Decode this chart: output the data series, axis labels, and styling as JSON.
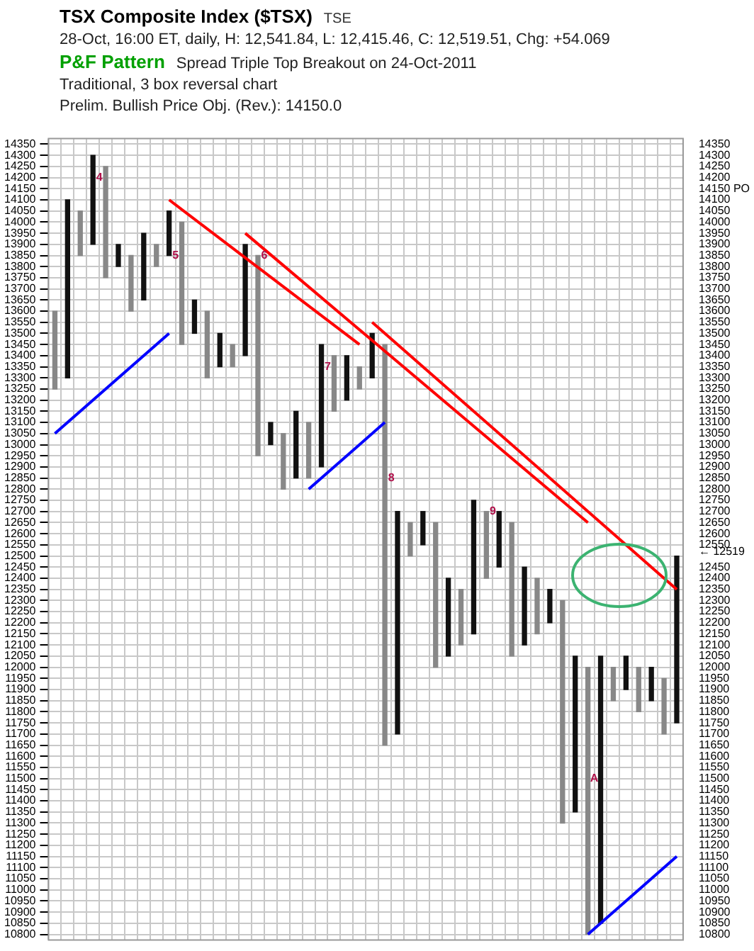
{
  "chart_data": {
    "type": "bar",
    "title": "TSX Composite Index ($TSX)",
    "subtitle": "28-Oct, 16:00 ET, daily, H: 12,541.84, L: 12,415.46, C: 12,519.51, Chg: +54.069",
    "annotations": [
      "TSE",
      "P&F Pattern",
      "Spread Triple Top Breakout on 24-Oct-2011",
      "Traditional, 3 box reversal chart",
      "Prelim. Bullish Price Obj. (Rev.): 14150.0",
      {
        "text": "4",
        "y": 14200
      },
      {
        "text": "5",
        "y": 13850
      },
      {
        "text": "6",
        "y": 13850
      },
      {
        "text": "7",
        "y": 13350
      },
      {
        "text": "8",
        "y": 12850
      },
      {
        "text": "9",
        "y": 12700
      },
      {
        "text": "A",
        "y": 11500
      }
    ],
    "categories": [
      null,
      null,
      null,
      null,
      null,
      null,
      null,
      null,
      null,
      null,
      null,
      null,
      null,
      null,
      null,
      null,
      null,
      null,
      null,
      null,
      null,
      null,
      null,
      null,
      null,
      null,
      null,
      null,
      null,
      null,
      null,
      null,
      null,
      null,
      null,
      null,
      null,
      null,
      null,
      null,
      null,
      null,
      null,
      null,
      null,
      null,
      null,
      null,
      null,
      null
    ],
    "base": [
      13250,
      13300,
      13850,
      13900,
      13750,
      13800,
      13600,
      13650,
      13800,
      13850,
      13450,
      13500,
      13300,
      13350,
      13350,
      13400,
      12950,
      13000,
      12800,
      12850,
      12850,
      12900,
      13150,
      13200,
      13250,
      13300,
      11650,
      11700,
      12500,
      12550,
      12000,
      12050,
      12100,
      12150,
      12400,
      12450,
      12050,
      12100,
      12150,
      12200,
      11300,
      11350,
      10800,
      10850,
      11850,
      11900,
      11800,
      11850,
      11700,
      11750
    ],
    "values": [
      350,
      800,
      200,
      400,
      500,
      100,
      250,
      300,
      100,
      200,
      550,
      150,
      300,
      150,
      100,
      500,
      900,
      100,
      250,
      300,
      250,
      550,
      250,
      200,
      100,
      200,
      1800,
      1000,
      150,
      150,
      650,
      350,
      250,
      600,
      300,
      250,
      600,
      350,
      250,
      150,
      1000,
      700,
      1200,
      1200,
      150,
      150,
      200,
      150,
      250,
      750
    ],
    "colors": [
      "#888888",
      "#111111",
      "#888888",
      "#111111",
      "#888888",
      "#111111",
      "#888888",
      "#111111",
      "#888888",
      "#111111",
      "#888888",
      "#111111",
      "#888888",
      "#111111",
      "#888888",
      "#111111",
      "#888888",
      "#111111",
      "#888888",
      "#111111",
      "#888888",
      "#111111",
      "#888888",
      "#111111",
      "#888888",
      "#111111",
      "#888888",
      "#111111",
      "#888888",
      "#111111",
      "#888888",
      "#111111",
      "#888888",
      "#111111",
      "#888888",
      "#111111",
      "#888888",
      "#111111",
      "#888888",
      "#111111",
      "#888888",
      "#111111",
      "#888888",
      "#111111",
      "#888888",
      "#111111",
      "#888888",
      "#111111",
      "#888888",
      "#111111"
    ],
    "series": [
      {
        "type": "line",
        "color": "#ff0000",
        "values": [
          null,
          null,
          null,
          null,
          null,
          null,
          null,
          null,
          null,
          14100,
          null,
          null,
          null,
          null,
          null,
          null,
          null,
          null,
          null,
          null,
          null,
          null,
          null,
          null,
          13450,
          null,
          null,
          null,
          null,
          null,
          null,
          null,
          null,
          null,
          null,
          null,
          null,
          null,
          null,
          null,
          null,
          null,
          null,
          null,
          null,
          null,
          null,
          null,
          null,
          null
        ]
      },
      {
        "type": "line",
        "color": "#ff0000",
        "values": [
          null,
          null,
          null,
          null,
          null,
          null,
          null,
          null,
          null,
          null,
          null,
          null,
          null,
          null,
          null,
          13950,
          null,
          null,
          null,
          null,
          null,
          null,
          null,
          null,
          null,
          null,
          null,
          null,
          null,
          null,
          null,
          null,
          null,
          null,
          null,
          null,
          null,
          null,
          null,
          null,
          null,
          null,
          12650,
          null,
          null,
          null,
          null,
          null,
          null,
          null
        ]
      },
      {
        "type": "line",
        "color": "#ff0000",
        "values": [
          null,
          null,
          null,
          null,
          null,
          null,
          null,
          null,
          null,
          null,
          null,
          null,
          null,
          null,
          null,
          null,
          null,
          null,
          null,
          null,
          null,
          null,
          null,
          null,
          null,
          13550,
          null,
          null,
          null,
          null,
          null,
          null,
          null,
          null,
          null,
          null,
          null,
          null,
          null,
          null,
          null,
          null,
          null,
          null,
          null,
          null,
          null,
          null,
          null,
          12350
        ]
      },
      {
        "type": "line",
        "color": "#0000ff",
        "values": [
          13050,
          null,
          null,
          null,
          null,
          null,
          null,
          null,
          null,
          13500,
          null,
          null,
          null,
          null,
          null,
          null,
          null,
          null,
          null,
          null,
          null,
          null,
          null,
          null,
          null,
          null,
          null,
          null,
          null,
          null,
          null,
          null,
          null,
          null,
          null,
          null,
          null,
          null,
          null,
          null,
          null,
          null,
          null,
          null,
          null,
          null,
          null,
          null,
          null,
          null
        ]
      },
      {
        "type": "line",
        "color": "#0000ff",
        "values": [
          null,
          null,
          null,
          null,
          null,
          null,
          null,
          null,
          null,
          null,
          null,
          null,
          null,
          null,
          null,
          null,
          null,
          null,
          null,
          null,
          12800,
          null,
          null,
          null,
          null,
          null,
          13100,
          null,
          null,
          null,
          null,
          null,
          null,
          null,
          null,
          null,
          null,
          null,
          null,
          null,
          null,
          null,
          null,
          null,
          null,
          null,
          null,
          null,
          null,
          null
        ]
      },
      {
        "type": "line",
        "color": "#0000ff",
        "values": [
          null,
          null,
          null,
          null,
          null,
          null,
          null,
          null,
          null,
          null,
          null,
          null,
          null,
          null,
          null,
          null,
          null,
          null,
          null,
          null,
          null,
          null,
          null,
          null,
          null,
          null,
          null,
          null,
          null,
          null,
          null,
          null,
          null,
          null,
          null,
          null,
          null,
          null,
          null,
          null,
          null,
          null,
          10800,
          null,
          null,
          null,
          null,
          null,
          null,
          11150
        ]
      }
    ],
    "ylim": [
      10775,
      14375
    ],
    "yticks": [
      14350,
      14300,
      14250,
      14200,
      14150,
      14100,
      14050,
      14000,
      13950,
      13900,
      13850,
      13800,
      13750,
      13700,
      13650,
      13600,
      13550,
      13500,
      13450,
      13400,
      13350,
      13300,
      13250,
      13200,
      13150,
      13100,
      13050,
      13000,
      12950,
      12900,
      12850,
      12800,
      12750,
      12700,
      12650,
      12600,
      12550,
      12500,
      12450,
      12400,
      12350,
      12300,
      12250,
      12200,
      12150,
      12100,
      12050,
      12000,
      11950,
      11900,
      11850,
      11800,
      11750,
      11700,
      11650,
      11600,
      11550,
      11500,
      11450,
      11400,
      11350,
      11300,
      11250,
      11200,
      11150,
      11100,
      11050,
      11000,
      10950,
      10900,
      10850,
      10800
    ],
    "y2lim": [
      10775,
      14375
    ],
    "y2ticks": [
      14350,
      14300,
      14250,
      14200,
      {
        "value": 14150,
        "label": "14150 PO"
      },
      14100,
      14050,
      14000,
      13950,
      13900,
      13850,
      13800,
      13750,
      13700,
      13650,
      13600,
      13550,
      13500,
      13450,
      13400,
      13350,
      13300,
      13250,
      13200,
      13150,
      13100,
      13050,
      13000,
      12950,
      12900,
      12850,
      12800,
      12750,
      12700,
      12650,
      12600,
      12550,
      {
        "value": 12519,
        "label": "← 12519"
      },
      12450,
      12400,
      12350,
      12300,
      12250,
      12200,
      12150,
      12100,
      12050,
      12000,
      11950,
      11900,
      11850,
      11800,
      11750,
      11700,
      11650,
      11600,
      11550,
      11500,
      11450,
      11400,
      11350,
      11300,
      11250,
      11200,
      11150,
      11100,
      11050,
      11000,
      10950,
      10900,
      10850,
      10800
    ],
    "tick_labels": "y",
    "grid": true
  }
}
